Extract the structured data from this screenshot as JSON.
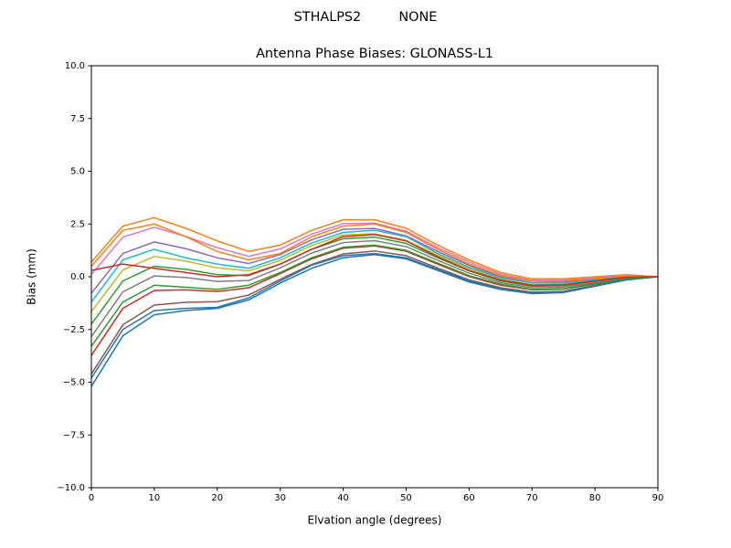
{
  "chart_data": {
    "type": "line",
    "suptitle": "STHALPS2         NONE",
    "title": "Antenna Phase Biases: GLONASS-L1",
    "xlabel": "Elvation angle (degrees)",
    "ylabel": "Bias (mm)",
    "x": [
      0,
      5,
      10,
      15,
      20,
      25,
      30,
      35,
      40,
      45,
      50,
      55,
      60,
      65,
      70,
      75,
      80,
      85,
      90
    ],
    "xlim": [
      0,
      90
    ],
    "ylim": [
      -10,
      10
    ],
    "xticks": [
      0,
      10,
      20,
      30,
      40,
      50,
      60,
      70,
      80,
      90
    ],
    "yticks": [
      {
        "value": -10,
        "label": "−10.0"
      },
      {
        "value": -7.5,
        "label": "−7.5"
      },
      {
        "value": -5,
        "label": "−5.0"
      },
      {
        "value": -2.5,
        "label": "−2.5"
      },
      {
        "value": 0,
        "label": "0.0"
      },
      2.5,
      {
        "value": 5,
        "label": "5.0"
      },
      7.5,
      {
        "value": 10,
        "label": "10.0"
      }
    ],
    "grid": false,
    "series": [
      {
        "color": "#1f77b4",
        "values": [
          -5.2,
          -2.8,
          -1.8,
          -1.6,
          -1.5,
          -1.1,
          -0.3,
          0.4,
          0.9,
          1.05,
          0.85,
          0.3,
          -0.25,
          -0.6,
          -0.8,
          -0.75,
          -0.45,
          -0.15,
          0
        ]
      },
      {
        "color": "#ff7f0e",
        "values": [
          0.7,
          2.4,
          2.8,
          2.3,
          1.7,
          1.2,
          1.5,
          2.2,
          2.7,
          2.7,
          2.3,
          1.5,
          0.8,
          0.2,
          -0.1,
          -0.1,
          0,
          0.1,
          0
        ]
      },
      {
        "color": "#2ca02c",
        "values": [
          -2.25,
          -0.2,
          0.5,
          0.35,
          0.1,
          0.05,
          0.6,
          1.3,
          1.8,
          1.88,
          1.58,
          0.9,
          0.28,
          -0.2,
          -0.45,
          -0.43,
          -0.23,
          -0.03,
          0
        ]
      },
      {
        "color": "#d62728",
        "values": [
          -3.73,
          -1.5,
          -0.65,
          -0.62,
          -0.7,
          -0.52,
          0.15,
          0.85,
          1.35,
          1.46,
          1.21,
          0.6,
          0.01,
          -0.4,
          -0.62,
          -0.59,
          -0.34,
          -0.09,
          0
        ]
      },
      {
        "color": "#9467bd",
        "values": [
          -0.78,
          1.1,
          1.65,
          1.33,
          0.9,
          0.63,
          1.05,
          1.75,
          2.25,
          2.29,
          1.94,
          1.2,
          0.54,
          0,
          -0.28,
          -0.26,
          -0.11,
          0.04,
          0
        ]
      },
      {
        "color": "#8c564b",
        "values": [
          -4.61,
          -2.28,
          -1.34,
          -1.21,
          -1.18,
          -0.87,
          -0.12,
          0.58,
          1.08,
          1.22,
          1.0,
          0.42,
          -0.15,
          -0.52,
          -0.73,
          -0.69,
          -0.41,
          -0.13,
          0
        ]
      },
      {
        "color": "#e377c2",
        "values": [
          0.11,
          1.88,
          2.34,
          1.91,
          1.38,
          0.97,
          1.32,
          2.02,
          2.52,
          2.54,
          2.16,
          1.38,
          0.7,
          0.12,
          -0.17,
          -0.17,
          -0.05,
          0.08,
          0
        ]
      },
      {
        "color": "#7f7f7f",
        "values": [
          -2.84,
          -0.72,
          0.04,
          -0.04,
          -0.22,
          -0.18,
          0.42,
          1.12,
          1.62,
          1.71,
          1.43,
          0.78,
          0.17,
          -0.28,
          -0.52,
          -0.49,
          -0.27,
          -0.05,
          0
        ]
      },
      {
        "color": "#bcbd22",
        "values": [
          -1.66,
          0.32,
          0.96,
          0.74,
          0.42,
          0.28,
          0.78,
          1.48,
          1.98,
          2.04,
          1.72,
          1.02,
          0.38,
          -0.12,
          -0.38,
          -0.36,
          -0.18,
          0,
          0
        ]
      },
      {
        "color": "#17becf",
        "values": [
          -1.2,
          0.8,
          1.3,
          0.9,
          0.6,
          0.4,
          0.9,
          1.6,
          2.1,
          2.2,
          1.9,
          1.1,
          0.45,
          -0.05,
          -0.3,
          -0.3,
          -0.15,
          0.02,
          0
        ]
      },
      {
        "color": "#1f77b4",
        "values": [
          -4.8,
          -2.5,
          -1.6,
          -1.5,
          -1.45,
          -1.0,
          -0.2,
          0.55,
          1.0,
          1.1,
          0.9,
          0.35,
          -0.2,
          -0.58,
          -0.78,
          -0.72,
          -0.43,
          -0.14,
          0
        ]
      },
      {
        "color": "#ff7f0e",
        "values": [
          0.5,
          2.2,
          2.5,
          1.9,
          1.2,
          0.8,
          1.1,
          1.9,
          2.4,
          2.5,
          2.1,
          1.3,
          0.6,
          0.05,
          -0.2,
          -0.2,
          -0.08,
          0.05,
          0
        ]
      },
      {
        "color": "#2ca02c",
        "values": [
          -3.3,
          -1.2,
          -0.4,
          -0.5,
          -0.6,
          -0.4,
          0.2,
          0.9,
          1.4,
          1.5,
          1.25,
          0.65,
          0.05,
          -0.35,
          -0.6,
          -0.57,
          -0.32,
          -0.08,
          0
        ]
      },
      {
        "color": "#d62728",
        "values": [
          0.3,
          0.6,
          0.4,
          0.2,
          0.0,
          0.1,
          0.6,
          1.3,
          1.9,
          2.0,
          1.7,
          0.95,
          0.3,
          -0.15,
          -0.4,
          -0.38,
          -0.2,
          -0.02,
          0
        ]
      }
    ]
  }
}
